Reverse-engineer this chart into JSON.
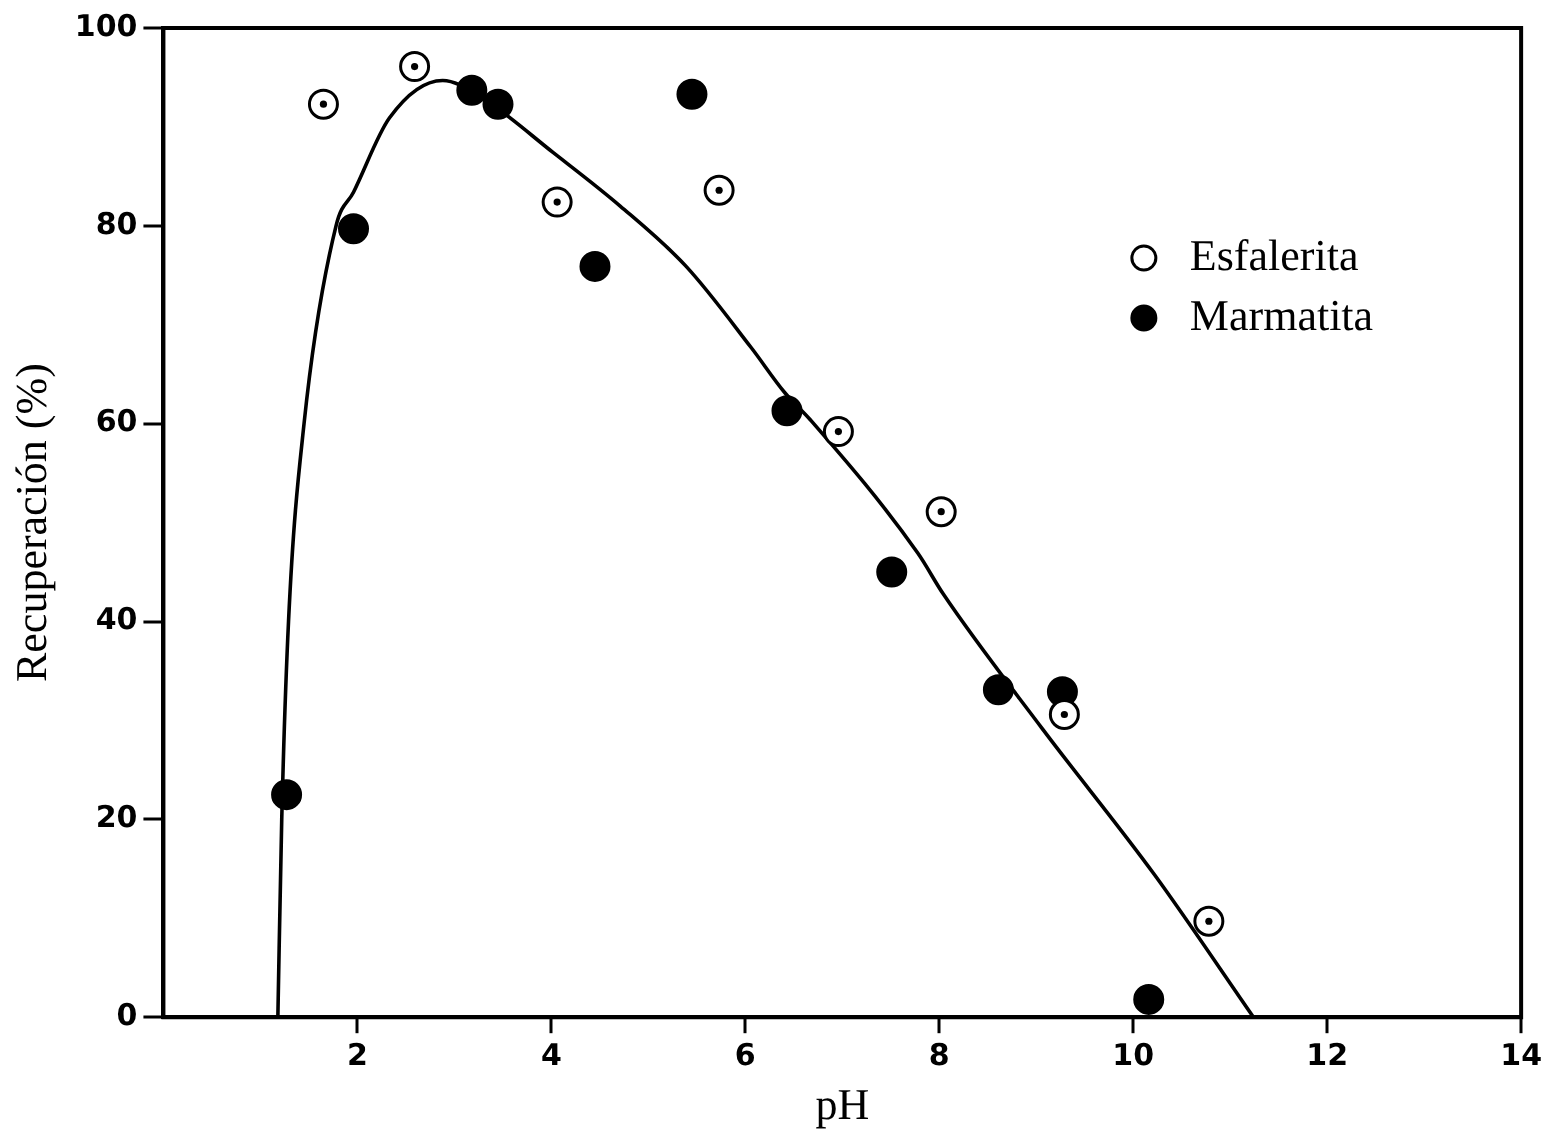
{
  "chart_data": {
    "type": "scatter",
    "xlabel": "pH",
    "ylabel": "Recuperación (%)",
    "xlim": [
      0,
      14
    ],
    "xticks": [
      2,
      4,
      6,
      8,
      10,
      12,
      14
    ],
    "ylim": [
      0,
      100
    ],
    "yticks": [
      0,
      20,
      40,
      60,
      80,
      100
    ],
    "grid": false,
    "legend": "top right",
    "marker": "circle",
    "series": [
      {
        "name": "Esfalerita",
        "color": "#ffffff",
        "x": [
          1.65,
          2.59,
          4.06,
          5.73,
          6.96,
          8.02,
          9.29,
          10.78
        ],
        "values": [
          92.3,
          96.1,
          82.4,
          83.6,
          59.2,
          51.1,
          30.6,
          9.7
        ]
      },
      {
        "name": "Marmatita",
        "color": "#000000",
        "x": [
          1.27,
          1.96,
          3.18,
          3.45,
          4.45,
          5.45,
          6.43,
          7.51,
          8.61,
          9.27,
          10.16
        ],
        "values": [
          22.5,
          79.7,
          93.7,
          92.3,
          75.9,
          93.3,
          61.3,
          45.0,
          33.1,
          32.9,
          1.8
        ]
      },
      {
        "type": "line",
        "color": "#000000",
        "marker": "none",
        "x": [
          1.18,
          1.22,
          1.29,
          1.45,
          1.78,
          1.96,
          2.33,
          2.88,
          3.29,
          4.02,
          4.71,
          5.39,
          6.06,
          6.41,
          6.67,
          7.78,
          8.04,
          9.06,
          10.22,
          11.24
        ],
        "values": [
          0,
          20,
          40,
          60,
          80,
          83.4,
          90.9,
          94.7,
          92.9,
          87.4,
          82.0,
          75.9,
          67.7,
          63.1,
          60.4,
          46.9,
          42.8,
          29.2,
          14.4,
          0
        ]
      }
    ]
  }
}
